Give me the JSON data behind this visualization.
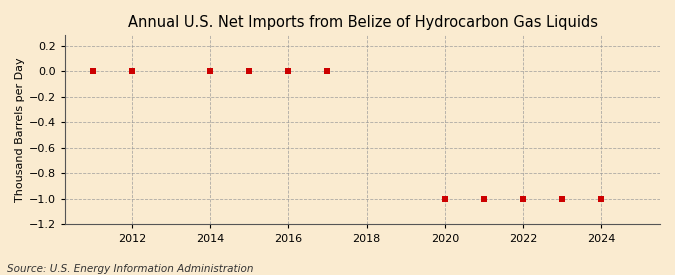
{
  "title": "Annual U.S. Net Imports from Belize of Hydrocarbon Gas Liquids",
  "ylabel": "Thousand Barrels per Day",
  "source": "Source: U.S. Energy Information Administration",
  "x_data": [
    2011,
    2012,
    2014,
    2015,
    2016,
    2017,
    2020,
    2021,
    2022,
    2023,
    2024
  ],
  "y_data": [
    0,
    0,
    0,
    0,
    0,
    0,
    -1,
    -1,
    -1,
    -1,
    -1
  ],
  "xlim": [
    2010.3,
    2025.5
  ],
  "ylim": [
    -1.2,
    0.28
  ],
  "yticks": [
    0.2,
    0.0,
    -0.2,
    -0.4,
    -0.6,
    -0.8,
    -1.0,
    -1.2
  ],
  "xticks": [
    2012,
    2014,
    2016,
    2018,
    2020,
    2022,
    2024
  ],
  "marker_color": "#cc0000",
  "marker": "s",
  "marker_size": 4,
  "background_color": "#faebd0",
  "grid_color": "#999999",
  "title_fontsize": 10.5,
  "label_fontsize": 8,
  "tick_fontsize": 8,
  "source_fontsize": 7.5
}
